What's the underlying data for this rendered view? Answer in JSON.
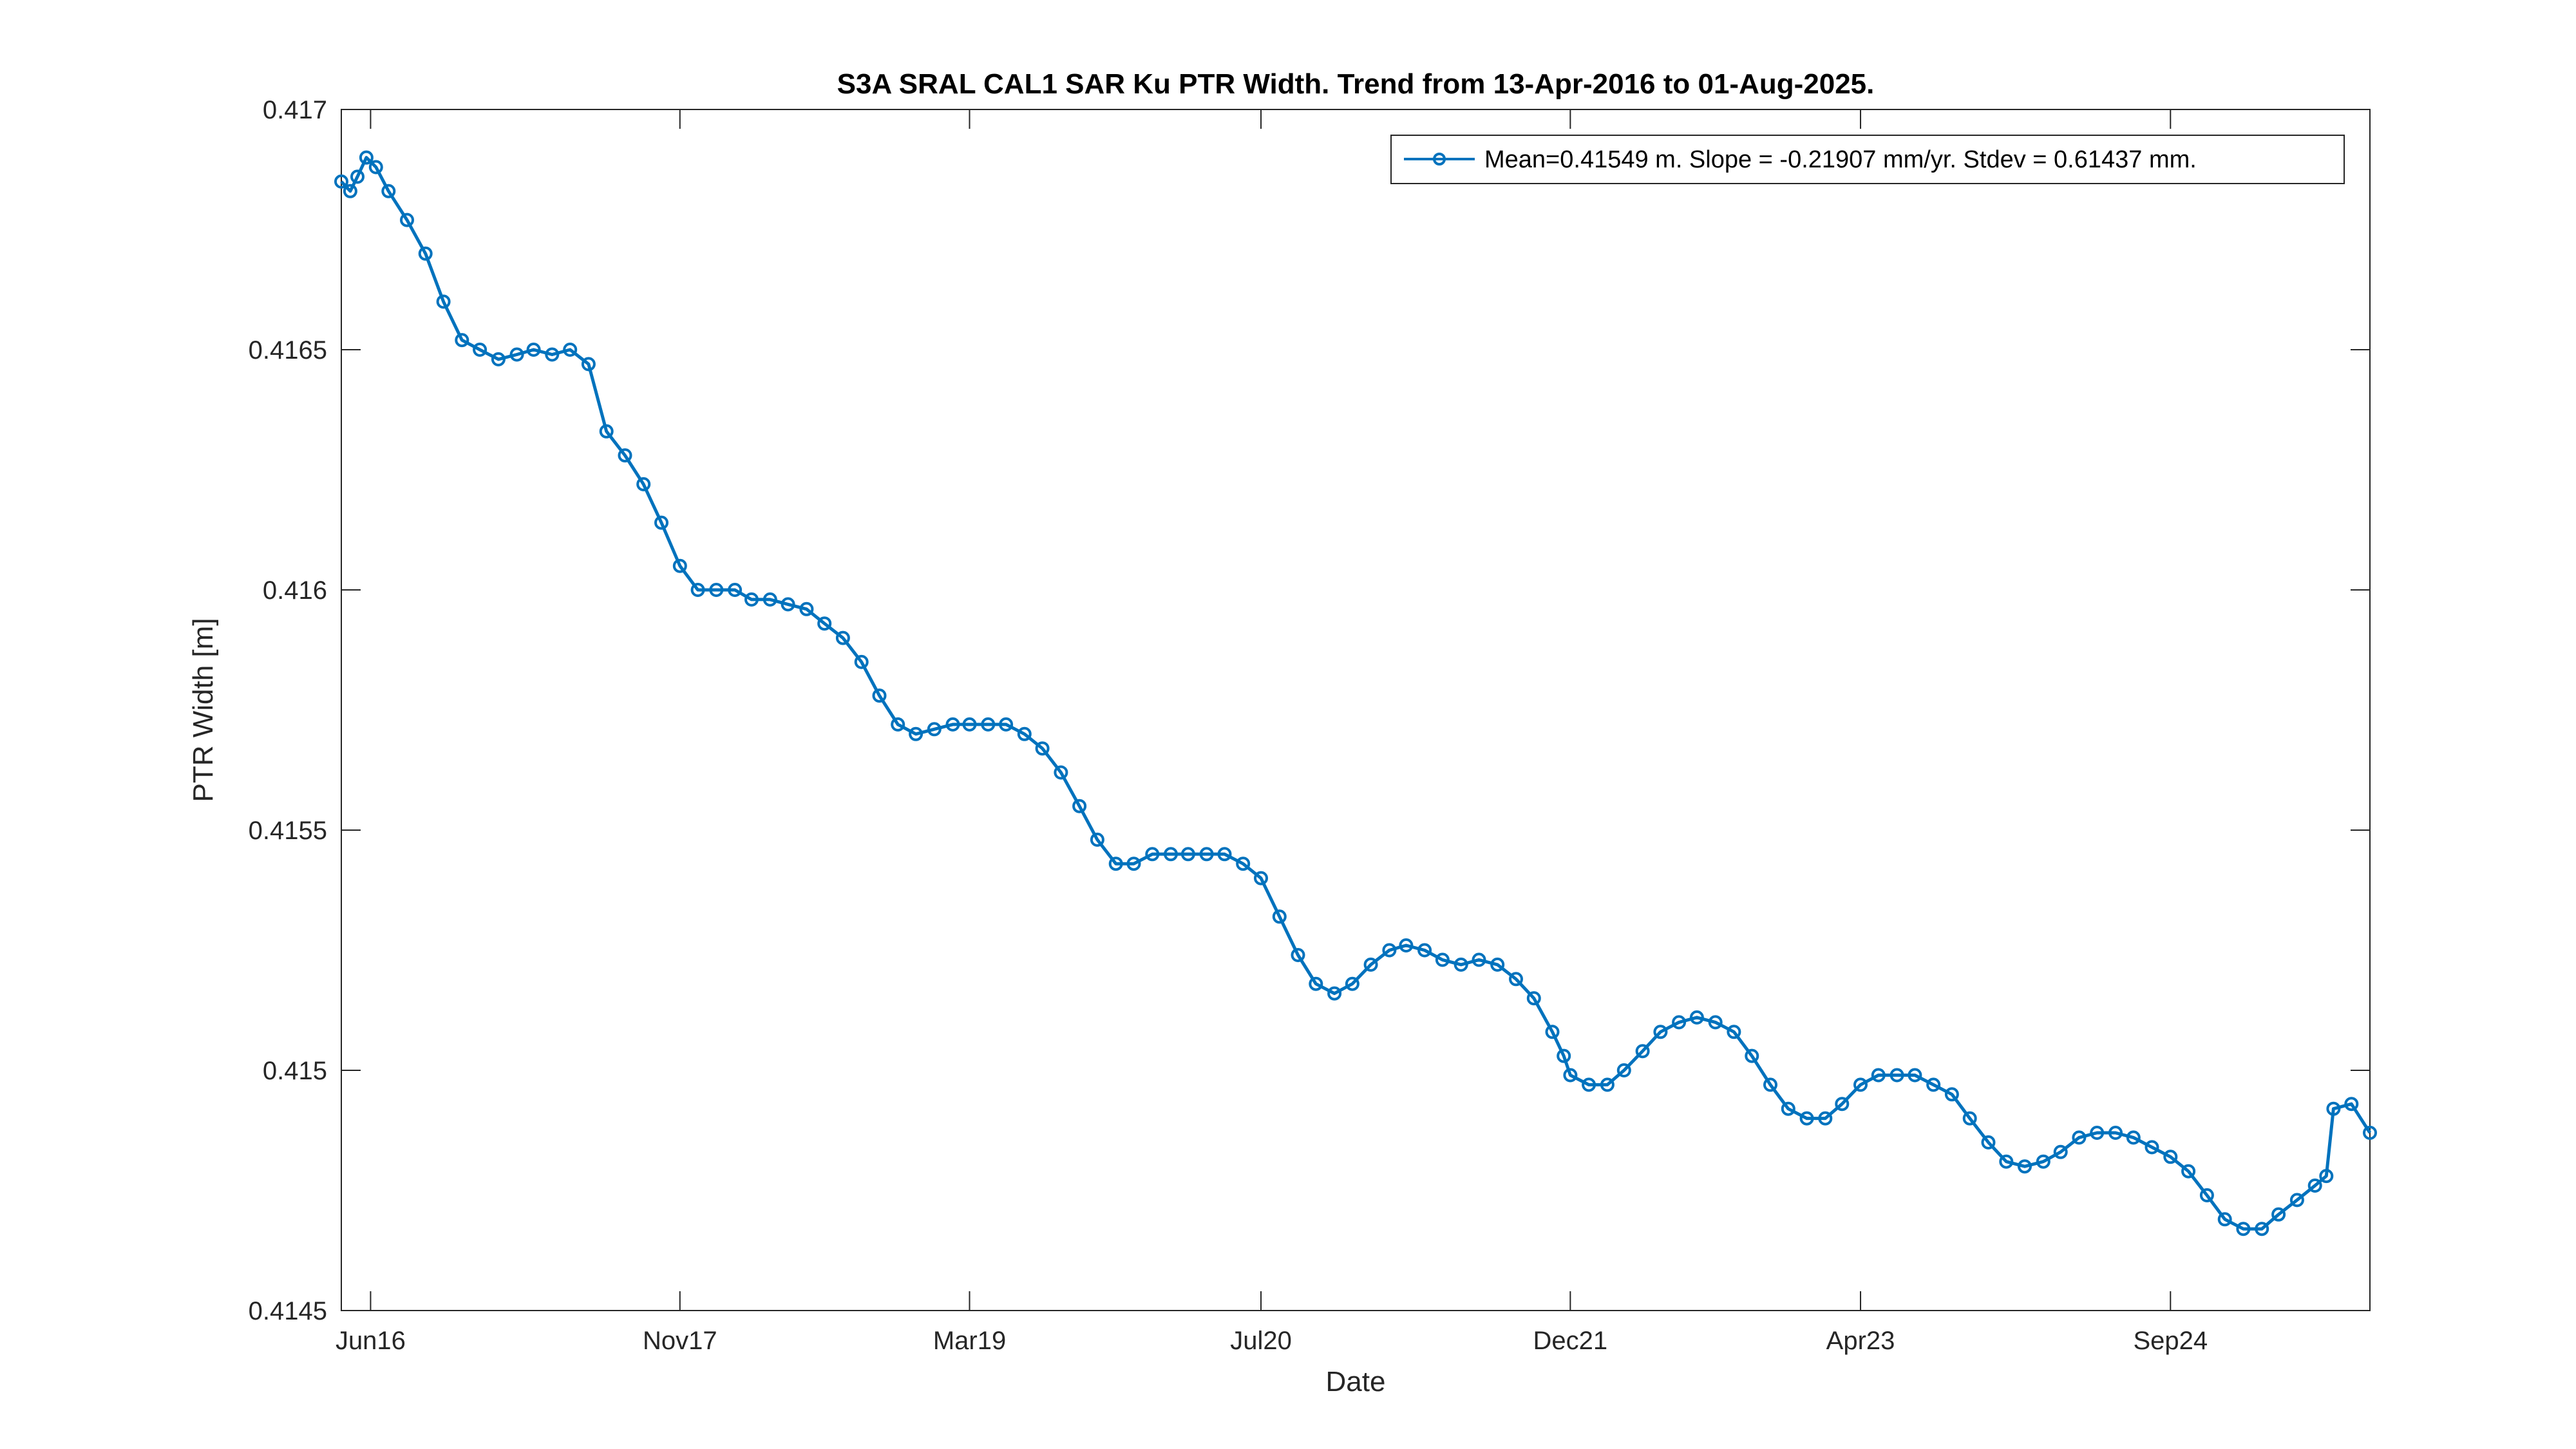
{
  "chart_data": {
    "type": "line",
    "title": "S3A SRAL CAL1 SAR Ku PTR Width. Trend from 13-Apr-2016 to 01-Aug-2025.",
    "xlabel": "Date",
    "ylabel": "PTR Width [m]",
    "xlim": [
      "2016-04-13",
      "2025-08-01"
    ],
    "ylim": [
      0.4145,
      0.417
    ],
    "x_ticks": [
      {
        "date": "2016-06-01",
        "label": "Jun16"
      },
      {
        "date": "2017-11-01",
        "label": "Nov17"
      },
      {
        "date": "2019-03-01",
        "label": "Mar19"
      },
      {
        "date": "2020-07-01",
        "label": "Jul20"
      },
      {
        "date": "2021-12-01",
        "label": "Dec21"
      },
      {
        "date": "2023-04-01",
        "label": "Apr23"
      },
      {
        "date": "2024-09-01",
        "label": "Sep24"
      }
    ],
    "y_ticks": [
      {
        "value": 0.4145,
        "label": "0.4145"
      },
      {
        "value": 0.415,
        "label": "0.415"
      },
      {
        "value": 0.4155,
        "label": "0.4155"
      },
      {
        "value": 0.416,
        "label": "0.416"
      },
      {
        "value": 0.4165,
        "label": "0.4165"
      },
      {
        "value": 0.417,
        "label": "0.417"
      }
    ],
    "grid": false,
    "legend_position": "top-right",
    "series": [
      {
        "name": "Mean=0.41549 m. Slope = -0.21907 mm/yr. Stdev = 0.61437 mm.",
        "color": "#0072BD",
        "marker": "circle",
        "x": [
          "2016-04-13",
          "2016-04-28",
          "2016-05-10",
          "2016-05-25",
          "2016-06-10",
          "2016-07-01",
          "2016-08-01",
          "2016-09-01",
          "2016-10-01",
          "2016-11-01",
          "2016-12-01",
          "2017-01-01",
          "2017-02-01",
          "2017-03-01",
          "2017-04-01",
          "2017-05-01",
          "2017-06-01",
          "2017-07-01",
          "2017-08-01",
          "2017-09-01",
          "2017-10-01",
          "2017-11-01",
          "2017-12-01",
          "2018-01-01",
          "2018-02-01",
          "2018-03-01",
          "2018-04-01",
          "2018-05-01",
          "2018-06-01",
          "2018-07-01",
          "2018-08-01",
          "2018-09-01",
          "2018-10-01",
          "2018-11-01",
          "2018-12-01",
          "2019-01-01",
          "2019-02-01",
          "2019-03-01",
          "2019-04-01",
          "2019-05-01",
          "2019-06-01",
          "2019-07-01",
          "2019-08-01",
          "2019-09-01",
          "2019-10-01",
          "2019-11-01",
          "2019-12-01",
          "2020-01-01",
          "2020-02-01",
          "2020-03-01",
          "2020-04-01",
          "2020-05-01",
          "2020-06-01",
          "2020-07-01",
          "2020-08-01",
          "2020-09-01",
          "2020-10-01",
          "2020-11-01",
          "2020-12-01",
          "2021-01-01",
          "2021-02-01",
          "2021-03-01",
          "2021-04-01",
          "2021-05-01",
          "2021-06-01",
          "2021-07-01",
          "2021-08-01",
          "2021-09-01",
          "2021-10-01",
          "2021-11-01",
          "2021-11-20",
          "2021-12-01",
          "2022-01-01",
          "2022-02-01",
          "2022-03-01",
          "2022-04-01",
          "2022-05-01",
          "2022-06-01",
          "2022-07-01",
          "2022-08-01",
          "2022-09-01",
          "2022-10-01",
          "2022-11-01",
          "2022-12-01",
          "2023-01-01",
          "2023-02-01",
          "2023-03-01",
          "2023-04-01",
          "2023-05-01",
          "2023-06-01",
          "2023-07-01",
          "2023-08-01",
          "2023-09-01",
          "2023-10-01",
          "2023-11-01",
          "2023-12-01",
          "2024-01-01",
          "2024-02-01",
          "2024-03-01",
          "2024-04-01",
          "2024-05-01",
          "2024-06-01",
          "2024-07-01",
          "2024-08-01",
          "2024-09-01",
          "2024-10-01",
          "2024-11-01",
          "2024-12-01",
          "2025-01-01",
          "2025-02-01",
          "2025-03-01",
          "2025-04-01",
          "2025-05-01",
          "2025-05-20",
          "2025-06-01",
          "2025-07-01",
          "2025-08-01"
        ],
        "y": [
          0.41685,
          0.41683,
          0.41686,
          0.4169,
          0.41688,
          0.41683,
          0.41677,
          0.4167,
          0.4166,
          0.41652,
          0.4165,
          0.41648,
          0.41649,
          0.4165,
          0.41649,
          0.4165,
          0.41647,
          0.41633,
          0.41628,
          0.41622,
          0.41614,
          0.41605,
          0.416,
          0.416,
          0.416,
          0.41598,
          0.41598,
          0.41597,
          0.41596,
          0.41593,
          0.4159,
          0.41585,
          0.41578,
          0.41572,
          0.4157,
          0.41571,
          0.41572,
          0.41572,
          0.41572,
          0.41572,
          0.4157,
          0.41567,
          0.41562,
          0.41555,
          0.41548,
          0.41543,
          0.41543,
          0.41545,
          0.41545,
          0.41545,
          0.41545,
          0.41545,
          0.41543,
          0.4154,
          0.41532,
          0.41524,
          0.41518,
          0.41516,
          0.41518,
          0.41522,
          0.41525,
          0.41526,
          0.41525,
          0.41523,
          0.41522,
          0.41523,
          0.41522,
          0.41519,
          0.41515,
          0.41508,
          0.41503,
          0.41499,
          0.41497,
          0.41497,
          0.415,
          0.41504,
          0.41508,
          0.4151,
          0.41511,
          0.4151,
          0.41508,
          0.41503,
          0.41497,
          0.41492,
          0.4149,
          0.4149,
          0.41493,
          0.41497,
          0.41499,
          0.41499,
          0.41499,
          0.41497,
          0.41495,
          0.4149,
          0.41485,
          0.41481,
          0.4148,
          0.41481,
          0.41483,
          0.41486,
          0.41487,
          0.41487,
          0.41486,
          0.41484,
          0.41482,
          0.41479,
          0.41474,
          0.41469,
          0.41467,
          0.41467,
          0.4147,
          0.41473,
          0.41476,
          0.41478,
          0.41492,
          0.41493,
          0.41487
        ]
      }
    ]
  }
}
